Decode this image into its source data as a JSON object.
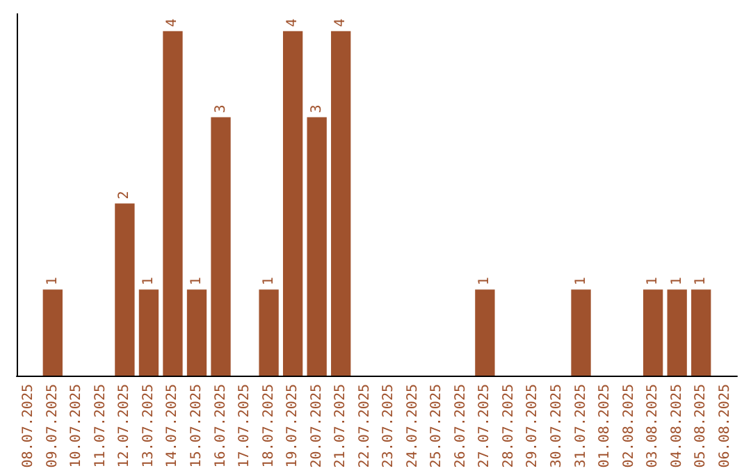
{
  "chart_data": {
    "type": "bar",
    "categories": [
      "08.07.2025",
      "09.07.2025",
      "10.07.2025",
      "11.07.2025",
      "12.07.2025",
      "13.07.2025",
      "14.07.2025",
      "15.07.2025",
      "16.07.2025",
      "17.07.2025",
      "18.07.2025",
      "19.07.2025",
      "20.07.2025",
      "21.07.2025",
      "22.07.2025",
      "23.07.2025",
      "24.07.2025",
      "25.07.2025",
      "26.07.2025",
      "27.07.2025",
      "28.07.2025",
      "29.07.2025",
      "30.07.2025",
      "31.07.2025",
      "01.08.2025",
      "02.08.2025",
      "03.08.2025",
      "04.08.2025",
      "05.08.2025",
      "06.08.2025"
    ],
    "values": [
      0,
      1,
      0,
      0,
      2,
      1,
      4,
      1,
      3,
      0,
      1,
      4,
      3,
      4,
      0,
      0,
      0,
      0,
      0,
      1,
      0,
      0,
      0,
      1,
      0,
      0,
      1,
      1,
      1,
      0
    ],
    "value_labels": [
      null,
      "1",
      null,
      null,
      "2",
      "1",
      "4",
      "1",
      "3",
      null,
      "1",
      "4",
      "3",
      "4",
      null,
      null,
      null,
      null,
      null,
      "1",
      null,
      null,
      null,
      "1",
      null,
      null,
      "1",
      "1",
      "1",
      null
    ],
    "color": "#a0522d",
    "ylim": [
      0,
      4.2
    ],
    "tick_labels": "x"
  }
}
